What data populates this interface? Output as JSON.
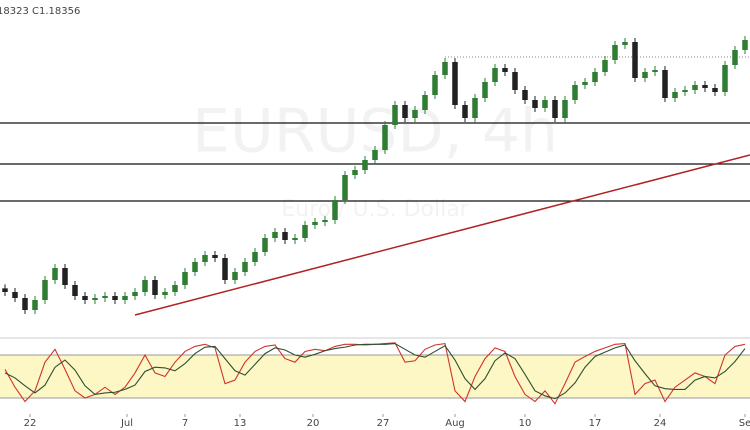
{
  "chart_data": {
    "type": "candlestick",
    "header": "18323 C1.18356",
    "watermark_title": "EURUSD, 4h",
    "watermark_subtitle": "Euro / U.S. Dollar",
    "xlim": [
      -0.5,
      74.5
    ],
    "ylim": [
      1.107,
      1.2075
    ],
    "xticks": [
      {
        "value": 2.5,
        "label": "22"
      },
      {
        "value": 12.2,
        "label": "Jul"
      },
      {
        "value": 18,
        "label": "7"
      },
      {
        "value": 23.5,
        "label": "13"
      },
      {
        "value": 30.8,
        "label": "20"
      },
      {
        "value": 37.8,
        "label": "27"
      },
      {
        "value": 45,
        "label": "Aug"
      },
      {
        "value": 52,
        "label": "10"
      },
      {
        "value": 59,
        "label": "17"
      },
      {
        "value": 65.5,
        "label": "24"
      },
      {
        "value": 74,
        "label": "Se"
      }
    ],
    "up_color": "#2e7d32",
    "down_color": "#222222",
    "open": [
      1.121,
      1.1199,
      1.1181,
      1.1145,
      1.1175,
      1.1235,
      1.1271,
      1.122,
      1.1187,
      1.1175,
      1.1181,
      1.1187,
      1.1175,
      1.1187,
      1.1199,
      1.1235,
      1.119,
      1.1199,
      1.122,
      1.1259,
      1.1289,
      1.131,
      1.1301,
      1.1235,
      1.1259,
      1.1289,
      1.1319,
      1.1361,
      1.1379,
      1.1355,
      1.1361,
      1.14,
      1.1409,
      1.1415,
      1.1475,
      1.155,
      1.1565,
      1.1595,
      1.1625,
      1.17,
      1.176,
      1.1721,
      1.1745,
      1.179,
      1.185,
      1.1889,
      1.176,
      1.1721,
      1.1781,
      1.1829,
      1.1871,
      1.1859,
      1.1805,
      1.1775,
      1.1751,
      1.1775,
      1.1721,
      1.1775,
      1.182,
      1.1829,
      1.1859,
      1.1895,
      1.194,
      1.1949,
      1.1841,
      1.1859,
      1.1865,
      1.1781,
      1.1799,
      1.1805,
      1.182,
      1.1811,
      1.1799,
      1.188,
      1.1925
    ],
    "high": [
      1.1222,
      1.1211,
      1.1193,
      1.1187,
      1.1247,
      1.1283,
      1.1283,
      1.1232,
      1.1199,
      1.1193,
      1.1199,
      1.1199,
      1.1199,
      1.1211,
      1.1247,
      1.1247,
      1.1211,
      1.1232,
      1.1271,
      1.1301,
      1.1322,
      1.1322,
      1.1313,
      1.1271,
      1.1301,
      1.1331,
      1.1373,
      1.1391,
      1.1391,
      1.1373,
      1.1412,
      1.1421,
      1.1427,
      1.1487,
      1.1562,
      1.1577,
      1.1607,
      1.1637,
      1.1712,
      1.1772,
      1.1772,
      1.1757,
      1.1802,
      1.1862,
      1.1901,
      1.1901,
      1.1772,
      1.1793,
      1.1841,
      1.1883,
      1.1883,
      1.1871,
      1.1817,
      1.1787,
      1.1787,
      1.1787,
      1.1787,
      1.1832,
      1.1841,
      1.1871,
      1.1907,
      1.1952,
      1.1961,
      1.1961,
      1.1871,
      1.1877,
      1.1877,
      1.1811,
      1.1817,
      1.1832,
      1.1832,
      1.1823,
      1.1892,
      1.1937,
      1.1967
    ],
    "low": [
      1.1187,
      1.1169,
      1.1133,
      1.1133,
      1.1163,
      1.1223,
      1.1208,
      1.1175,
      1.1163,
      1.1163,
      1.1169,
      1.1163,
      1.1163,
      1.1175,
      1.1187,
      1.1178,
      1.1178,
      1.1187,
      1.1208,
      1.1247,
      1.1277,
      1.1289,
      1.1223,
      1.1223,
      1.1247,
      1.1277,
      1.1307,
      1.1349,
      1.1343,
      1.1343,
      1.1349,
      1.1388,
      1.1397,
      1.1403,
      1.1463,
      1.1538,
      1.1553,
      1.1583,
      1.1613,
      1.1688,
      1.1709,
      1.1709,
      1.1733,
      1.1778,
      1.1838,
      1.1748,
      1.1709,
      1.1709,
      1.1769,
      1.1817,
      1.1847,
      1.1793,
      1.1763,
      1.1739,
      1.1739,
      1.1709,
      1.1709,
      1.1763,
      1.1808,
      1.1817,
      1.1847,
      1.1883,
      1.1928,
      1.1829,
      1.1829,
      1.1847,
      1.1769,
      1.1769,
      1.1787,
      1.1793,
      1.1799,
      1.1787,
      1.1787,
      1.1868,
      1.1913
    ],
    "close": [
      1.1199,
      1.1181,
      1.1145,
      1.1175,
      1.1235,
      1.1271,
      1.122,
      1.1187,
      1.1175,
      1.1181,
      1.1187,
      1.1175,
      1.1187,
      1.1199,
      1.1235,
      1.119,
      1.1199,
      1.122,
      1.1259,
      1.1289,
      1.131,
      1.1301,
      1.1235,
      1.1259,
      1.1289,
      1.1319,
      1.1361,
      1.1379,
      1.1355,
      1.1361,
      1.14,
      1.1409,
      1.1415,
      1.1475,
      1.155,
      1.1565,
      1.1595,
      1.1625,
      1.17,
      1.176,
      1.1721,
      1.1745,
      1.179,
      1.185,
      1.1889,
      1.176,
      1.1721,
      1.1781,
      1.1829,
      1.1871,
      1.1859,
      1.1805,
      1.1775,
      1.1751,
      1.1775,
      1.1721,
      1.1775,
      1.182,
      1.1829,
      1.1859,
      1.1895,
      1.194,
      1.1949,
      1.1841,
      1.1859,
      1.1865,
      1.1781,
      1.1799,
      1.1805,
      1.182,
      1.1811,
      1.1799,
      1.188,
      1.1925,
      1.1955
    ],
    "levels": {
      "values": [
        1.1706,
        1.1583,
        1.1472
      ],
      "color": "#111111"
    },
    "trendline": {
      "x": [
        13,
        74.5
      ],
      "y": [
        1.113,
        1.161
      ],
      "color": "#b22222"
    },
    "dotted_line": {
      "x": [
        44,
        74.5
      ],
      "y": [
        1.1904,
        1.1904
      ],
      "color": "#888888"
    },
    "stochastic": {
      "ylim": [
        0,
        100
      ],
      "levels": [
        80,
        20
      ],
      "band_color": "#fcf7c5",
      "series": [
        {
          "color": "#d0342c",
          "values": [
            60,
            35,
            15,
            30,
            70,
            88,
            60,
            30,
            20,
            25,
            35,
            25,
            35,
            55,
            80,
            55,
            50,
            70,
            85,
            92,
            95,
            90,
            40,
            45,
            70,
            85,
            92,
            94,
            75,
            70,
            85,
            88,
            86,
            92,
            95,
            95,
            94,
            95,
            96,
            97,
            70,
            72,
            88,
            94,
            96,
            30,
            15,
            50,
            75,
            90,
            85,
            50,
            25,
            15,
            30,
            12,
            40,
            70,
            78,
            85,
            90,
            95,
            96,
            25,
            40,
            45,
            15,
            35,
            45,
            55,
            50,
            40,
            80,
            92,
            95
          ]
        },
        {
          "color": "#2f4f2f",
          "values": [
            55,
            48,
            37,
            27,
            38,
            63,
            73,
            59,
            37,
            25,
            27,
            28,
            32,
            38,
            57,
            63,
            62,
            58,
            68,
            82,
            91,
            92,
            75,
            58,
            52,
            67,
            82,
            90,
            87,
            80,
            77,
            81,
            86,
            89,
            91,
            94,
            95,
            95,
            95,
            96,
            88,
            80,
            77,
            85,
            93,
            73,
            47,
            32,
            47,
            72,
            83,
            75,
            53,
            30,
            23,
            19,
            27,
            41,
            63,
            78,
            84,
            90,
            94,
            72,
            54,
            37,
            33,
            32,
            32,
            45,
            50,
            48,
            57,
            71,
            89
          ]
        }
      ]
    }
  }
}
